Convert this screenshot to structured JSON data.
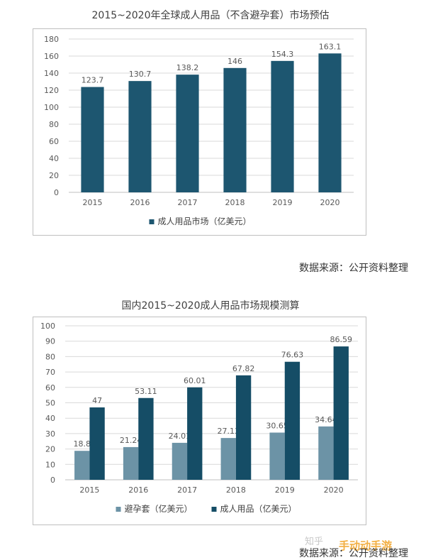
{
  "chart_data": [
    {
      "type": "bar",
      "title": "2015~2020年全球成人用品（不含避孕套）市场预估",
      "categories": [
        "2015",
        "2016",
        "2017",
        "2018",
        "2019",
        "2020"
      ],
      "series": [
        {
          "name": "成人用品市场（亿美元）",
          "values": [
            123.7,
            130.7,
            138.2,
            146,
            154.3,
            163.1
          ]
        }
      ],
      "data_labels": [
        "123.7",
        "130.7",
        "138.2",
        "146",
        "154.3",
        "163.1"
      ],
      "ylim": [
        0,
        180
      ],
      "yticks": [
        0,
        20,
        40,
        60,
        80,
        100,
        120,
        140,
        160,
        180
      ],
      "grid": true,
      "legend": "bottom",
      "colors": [
        "#1d5670"
      ]
    },
    {
      "type": "bar",
      "title": "国内2015~2020成人用品市场规模测算",
      "categories": [
        "2015",
        "2016",
        "2017",
        "2018",
        "2019",
        "2020"
      ],
      "series": [
        {
          "name": "避孕套（亿美元）",
          "values": [
            18.8,
            21.24,
            24.01,
            27.13,
            30.65,
            34.64
          ]
        },
        {
          "name": "成人用品（亿美元）",
          "values": [
            47,
            53.11,
            60.01,
            67.82,
            76.63,
            86.59
          ]
        }
      ],
      "data_labels": [
        [
          "18.8",
          "21.24",
          "24.01",
          "27.13",
          "30.65",
          "34.64"
        ],
        [
          "47",
          "53.11",
          "60.01",
          "67.82",
          "76.63",
          "86.59"
        ]
      ],
      "ylim": [
        0,
        100
      ],
      "yticks": [
        0,
        10,
        20,
        30,
        40,
        50,
        60,
        70,
        80,
        90,
        100
      ],
      "grid": true,
      "legend": "bottom",
      "colors": [
        "#6c93a6",
        "#154d66"
      ]
    }
  ],
  "sources": [
    "数据来源：公开资料整理",
    "数据来源：公开资料整理"
  ],
  "watermark": {
    "faint": "知乎",
    "brand": "手动动手游"
  }
}
